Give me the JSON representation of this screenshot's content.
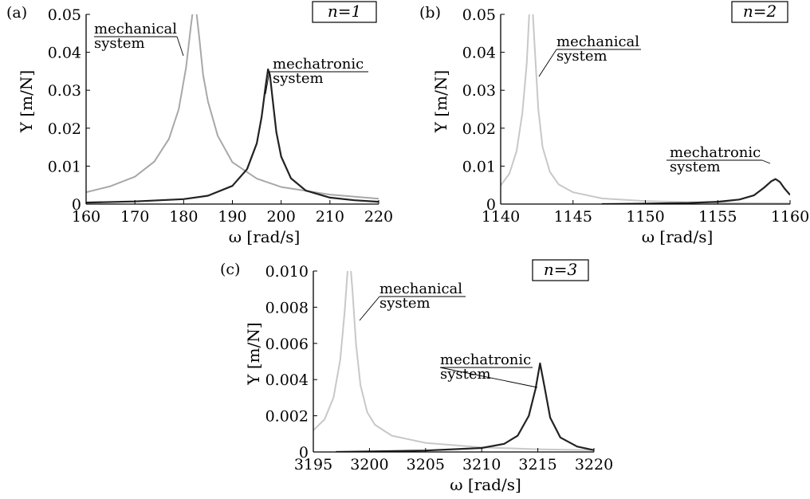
{
  "chart_data": [
    {
      "panel": "(a)",
      "type": "line",
      "badge": "n=1",
      "xlabel": "ω [rad/s]",
      "ylabel": "Y [m/N]",
      "xlim": [
        160,
        220
      ],
      "ylim": [
        0,
        0.05
      ],
      "xticks": [
        160,
        170,
        180,
        190,
        200,
        210,
        220
      ],
      "yticks": [
        0,
        0.01,
        0.02,
        0.03,
        0.04,
        0.05
      ],
      "xtick_labels": [
        "160",
        "170",
        "180",
        "190",
        "200",
        "210",
        "220"
      ],
      "ytick_labels": [
        "0",
        "0.01",
        "0.02",
        "0.03",
        "0.04",
        "0.05"
      ],
      "series": [
        {
          "label": "mechanical system",
          "color": "#a8a8a8",
          "x": [
            160,
            165,
            170,
            174,
            177,
            179,
            180.5,
            181.5,
            182.0,
            182.5,
            183.2,
            184.0,
            185,
            187,
            190,
            195,
            200,
            210,
            220
          ],
          "y": [
            0.0031,
            0.0047,
            0.0072,
            0.0112,
            0.0172,
            0.025,
            0.036,
            0.047,
            0.052,
            0.052,
            0.044,
            0.034,
            0.027,
            0.018,
            0.011,
            0.0067,
            0.0045,
            0.0025,
            0.0014
          ]
        },
        {
          "label": "mechatronic system",
          "color": "#222222",
          "x": [
            160,
            170,
            180,
            185,
            190,
            193,
            195,
            196,
            196.8,
            197.3,
            197.7,
            198.3,
            199,
            200,
            202,
            205,
            210,
            215,
            220
          ],
          "y": [
            0.0004,
            0.0007,
            0.0013,
            0.0022,
            0.0048,
            0.0092,
            0.016,
            0.023,
            0.031,
            0.0355,
            0.034,
            0.027,
            0.019,
            0.0125,
            0.0068,
            0.0036,
            0.0017,
            0.001,
            0.0006
          ]
        }
      ]
    },
    {
      "panel": "(b)",
      "type": "line",
      "badge": "n=2",
      "xlabel": "ω [rad/s]",
      "ylabel": "Y [m/N]",
      "xlim": [
        1140,
        1160
      ],
      "ylim": [
        0,
        0.05
      ],
      "xticks": [
        1140,
        1145,
        1150,
        1155,
        1160
      ],
      "yticks": [
        0,
        0.01,
        0.02,
        0.03,
        0.04,
        0.05
      ],
      "xtick_labels": [
        "1140",
        "1145",
        "1150",
        "1155",
        "1160"
      ],
      "ytick_labels": [
        "0",
        "0.01",
        "0.02",
        "0.03",
        "0.04",
        "0.05"
      ],
      "series": [
        {
          "label": "mechanical system",
          "color": "#c8c8c8",
          "x": [
            1140,
            1140.6,
            1141.1,
            1141.5,
            1141.8,
            1142.0,
            1142.2,
            1142.4,
            1142.6,
            1142.9,
            1143.4,
            1144,
            1145,
            1147,
            1150,
            1153,
            1156,
            1160
          ],
          "y": [
            0.0049,
            0.008,
            0.014,
            0.024,
            0.037,
            0.052,
            0.052,
            0.038,
            0.025,
            0.015,
            0.0085,
            0.0052,
            0.0031,
            0.0015,
            0.0008,
            0.0005,
            0.0003,
            0.0002
          ]
        },
        {
          "label": "mechatronic system",
          "color": "#222222",
          "x": [
            1147,
            1150,
            1153,
            1155,
            1156.5,
            1157.5,
            1158.2,
            1158.7,
            1159.0,
            1159.3,
            1159.6,
            1160
          ],
          "y": [
            0.0,
            0.0001,
            0.0003,
            0.0006,
            0.0012,
            0.0023,
            0.0043,
            0.006,
            0.0066,
            0.0058,
            0.0042,
            0.0024
          ]
        }
      ]
    },
    {
      "panel": "(c)",
      "type": "line",
      "badge": "n=3",
      "xlabel": "ω [rad/s]",
      "ylabel": "Y [m/N]",
      "xlim": [
        3195,
        3220
      ],
      "ylim": [
        0,
        0.01
      ],
      "xticks": [
        3195,
        3200,
        3205,
        3210,
        3215,
        3220
      ],
      "yticks": [
        0,
        0.002,
        0.004,
        0.006,
        0.008,
        0.01
      ],
      "xtick_labels": [
        "3195",
        "3200",
        "3205",
        "3210",
        "3215",
        "3220"
      ],
      "ytick_labels": [
        "0",
        "0.002",
        "0.004",
        "0.006",
        "0.008",
        "0.010"
      ],
      "series": [
        {
          "label": "mechanical system",
          "color": "#c8c8c8",
          "x": [
            3195,
            3196,
            3196.8,
            3197.4,
            3197.8,
            3198.1,
            3198.3,
            3198.5,
            3198.8,
            3199.2,
            3199.8,
            3200.5,
            3202,
            3205,
            3210,
            3215,
            3220
          ],
          "y": [
            0.0012,
            0.0018,
            0.003,
            0.0051,
            0.0078,
            0.0104,
            0.0104,
            0.0088,
            0.006,
            0.0037,
            0.0022,
            0.0015,
            0.0009,
            0.0005,
            0.00025,
            0.00015,
            0.0001
          ]
        },
        {
          "label": "mechatronic system",
          "color": "#222222",
          "x": [
            3197,
            3200,
            3205,
            3210,
            3212,
            3213.2,
            3214.2,
            3214.8,
            3215.2,
            3215.6,
            3216.1,
            3217,
            3218.5,
            3220
          ],
          "y": [
            0.0,
            3e-05,
            8e-05,
            0.00022,
            0.00045,
            0.0009,
            0.002,
            0.0035,
            0.0049,
            0.0036,
            0.0019,
            0.0008,
            0.0003,
            0.0001
          ]
        }
      ]
    }
  ]
}
